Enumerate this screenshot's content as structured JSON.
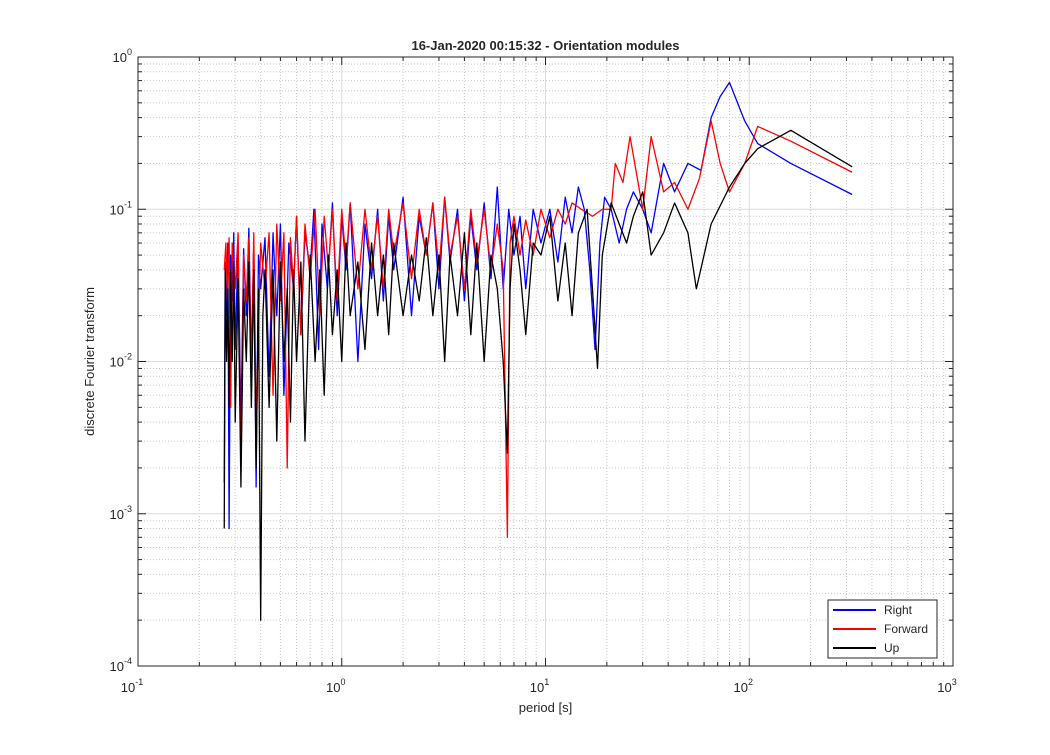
{
  "chart_data": {
    "type": "line",
    "title": "16-Jan-2020 00:15:32 - Orientation modules",
    "xlabel": "period [s]",
    "ylabel": "discrete Fourier transform",
    "xscale": "log",
    "yscale": "log",
    "xlim": [
      0.1,
      1000
    ],
    "ylim": [
      0.0001,
      1
    ],
    "x_ticks": [
      {
        "base": "10",
        "exp": "-1",
        "value": 0.1
      },
      {
        "base": "10",
        "exp": "0",
        "value": 1
      },
      {
        "base": "10",
        "exp": "1",
        "value": 10
      },
      {
        "base": "10",
        "exp": "2",
        "value": 100
      },
      {
        "base": "10",
        "exp": "3",
        "value": 1000
      }
    ],
    "y_ticks": [
      {
        "base": "10",
        "exp": "-4",
        "value": 0.0001
      },
      {
        "base": "10",
        "exp": "-3",
        "value": 0.001
      },
      {
        "base": "10",
        "exp": "-2",
        "value": 0.01
      },
      {
        "base": "10",
        "exp": "-1",
        "value": 0.1
      },
      {
        "base": "10",
        "exp": "0",
        "value": 1
      }
    ],
    "grid": true,
    "minor_grid": true,
    "legend_position": "bottom-right",
    "series": [
      {
        "name": "Right",
        "color": "#0000ff",
        "points": [
          [
            0.265,
            0.0016
          ],
          [
            0.268,
            0.045
          ],
          [
            0.272,
            0.02
          ],
          [
            0.276,
            0.06
          ],
          [
            0.28,
            0.0008
          ],
          [
            0.285,
            0.05
          ],
          [
            0.29,
            0.025
          ],
          [
            0.295,
            0.07
          ],
          [
            0.3,
            0.012
          ],
          [
            0.31,
            0.06
          ],
          [
            0.32,
            0.004
          ],
          [
            0.33,
            0.055
          ],
          [
            0.34,
            0.02
          ],
          [
            0.35,
            0.075
          ],
          [
            0.36,
            0.01
          ],
          [
            0.37,
            0.06
          ],
          [
            0.38,
            0.0015
          ],
          [
            0.39,
            0.05
          ],
          [
            0.4,
            0.03
          ],
          [
            0.42,
            0.065
          ],
          [
            0.44,
            0.008
          ],
          [
            0.46,
            0.07
          ],
          [
            0.48,
            0.02
          ],
          [
            0.5,
            0.08
          ],
          [
            0.52,
            0.006
          ],
          [
            0.55,
            0.06
          ],
          [
            0.58,
            0.03
          ],
          [
            0.6,
            0.09
          ],
          [
            0.63,
            0.015
          ],
          [
            0.66,
            0.07
          ],
          [
            0.7,
            0.04
          ],
          [
            0.73,
            0.1
          ],
          [
            0.77,
            0.012
          ],
          [
            0.8,
            0.08
          ],
          [
            0.85,
            0.03
          ],
          [
            0.9,
            0.11
          ],
          [
            0.95,
            0.02
          ],
          [
            1.0,
            0.09
          ],
          [
            1.05,
            0.04
          ],
          [
            1.1,
            0.11
          ],
          [
            1.2,
            0.01
          ],
          [
            1.3,
            0.08
          ],
          [
            1.4,
            0.035
          ],
          [
            1.5,
            0.1
          ],
          [
            1.6,
            0.025
          ],
          [
            1.7,
            0.09
          ],
          [
            1.8,
            0.04
          ],
          [
            2.0,
            0.12
          ],
          [
            2.2,
            0.02
          ],
          [
            2.4,
            0.09
          ],
          [
            2.6,
            0.05
          ],
          [
            2.8,
            0.11
          ],
          [
            3.0,
            0.03
          ],
          [
            3.2,
            0.12
          ],
          [
            3.4,
            0.045
          ],
          [
            3.7,
            0.1
          ],
          [
            4.0,
            0.025
          ],
          [
            4.3,
            0.09
          ],
          [
            4.6,
            0.04
          ],
          [
            5.0,
            0.11
          ],
          [
            5.4,
            0.035
          ],
          [
            5.8,
            0.14
          ],
          [
            6.2,
            0.03
          ],
          [
            6.6,
            0.1
          ],
          [
            7.0,
            0.05
          ],
          [
            7.5,
            0.09
          ],
          [
            8.0,
            0.03
          ],
          [
            8.7,
            0.1
          ],
          [
            9.5,
            0.06
          ],
          [
            10.5,
            0.1
          ],
          [
            11.5,
            0.045
          ],
          [
            12.5,
            0.12
          ],
          [
            13.5,
            0.07
          ],
          [
            14.5,
            0.14
          ],
          [
            15.5,
            0.1
          ],
          [
            16.5,
            0.04
          ],
          [
            17.5,
            0.012
          ],
          [
            18.5,
            0.06
          ],
          [
            19.5,
            0.12
          ],
          [
            21,
            0.1
          ],
          [
            23,
            0.06
          ],
          [
            25,
            0.1
          ],
          [
            27,
            0.13
          ],
          [
            30,
            0.1
          ],
          [
            33,
            0.07
          ],
          [
            38,
            0.2
          ],
          [
            43,
            0.13
          ],
          [
            50,
            0.2
          ],
          [
            58,
            0.18
          ],
          [
            65,
            0.4
          ],
          [
            72,
            0.55
          ],
          [
            80,
            0.68
          ],
          [
            95,
            0.38
          ],
          [
            110,
            0.27
          ],
          [
            160,
            0.2
          ],
          [
            320,
            0.125
          ]
        ]
      },
      {
        "name": "Forward",
        "color": "#ff0000",
        "points": [
          [
            0.265,
            0.04
          ],
          [
            0.27,
            0.06
          ],
          [
            0.275,
            0.025
          ],
          [
            0.28,
            0.065
          ],
          [
            0.285,
            0.005
          ],
          [
            0.29,
            0.06
          ],
          [
            0.3,
            0.03
          ],
          [
            0.31,
            0.07
          ],
          [
            0.32,
            0.002
          ],
          [
            0.33,
            0.05
          ],
          [
            0.34,
            0.025
          ],
          [
            0.35,
            0.065
          ],
          [
            0.36,
            0.008
          ],
          [
            0.37,
            0.07
          ],
          [
            0.38,
            0.004
          ],
          [
            0.4,
            0.06
          ],
          [
            0.42,
            0.03
          ],
          [
            0.44,
            0.07
          ],
          [
            0.46,
            0.006
          ],
          [
            0.48,
            0.08
          ],
          [
            0.5,
            0.025
          ],
          [
            0.52,
            0.07
          ],
          [
            0.54,
            0.002
          ],
          [
            0.56,
            0.065
          ],
          [
            0.58,
            0.03
          ],
          [
            0.6,
            0.09
          ],
          [
            0.63,
            0.015
          ],
          [
            0.66,
            0.08
          ],
          [
            0.7,
            0.035
          ],
          [
            0.74,
            0.1
          ],
          [
            0.78,
            0.02
          ],
          [
            0.82,
            0.09
          ],
          [
            0.86,
            0.04
          ],
          [
            0.9,
            0.1
          ],
          [
            0.95,
            0.025
          ],
          [
            1.0,
            0.1
          ],
          [
            1.05,
            0.045
          ],
          [
            1.1,
            0.11
          ],
          [
            1.2,
            0.03
          ],
          [
            1.3,
            0.1
          ],
          [
            1.4,
            0.04
          ],
          [
            1.5,
            0.09
          ],
          [
            1.6,
            0.03
          ],
          [
            1.7,
            0.1
          ],
          [
            1.8,
            0.05
          ],
          [
            2.0,
            0.11
          ],
          [
            2.2,
            0.035
          ],
          [
            2.4,
            0.1
          ],
          [
            2.6,
            0.05
          ],
          [
            2.8,
            0.11
          ],
          [
            3.0,
            0.04
          ],
          [
            3.2,
            0.12
          ],
          [
            3.4,
            0.05
          ],
          [
            3.7,
            0.09
          ],
          [
            4.0,
            0.03
          ],
          [
            4.3,
            0.1
          ],
          [
            4.6,
            0.045
          ],
          [
            5.0,
            0.1
          ],
          [
            5.4,
            0.04
          ],
          [
            5.8,
            0.08
          ],
          [
            6.2,
            0.04
          ],
          [
            6.5,
            0.0007
          ],
          [
            6.7,
            0.06
          ],
          [
            7.0,
            0.09
          ],
          [
            7.5,
            0.05
          ],
          [
            8.0,
            0.085
          ],
          [
            8.7,
            0.05
          ],
          [
            9.5,
            0.1
          ],
          [
            10.5,
            0.065
          ],
          [
            11.5,
            0.1
          ],
          [
            12.5,
            0.08
          ],
          [
            13.5,
            0.11
          ],
          [
            15,
            0.1
          ],
          [
            17,
            0.09
          ],
          [
            19,
            0.1
          ],
          [
            21,
            0.1
          ],
          [
            22,
            0.2
          ],
          [
            24,
            0.15
          ],
          [
            26,
            0.3
          ],
          [
            28,
            0.17
          ],
          [
            30,
            0.1
          ],
          [
            33,
            0.3
          ],
          [
            38,
            0.13
          ],
          [
            43,
            0.15
          ],
          [
            50,
            0.1
          ],
          [
            57,
            0.16
          ],
          [
            65,
            0.38
          ],
          [
            72,
            0.2
          ],
          [
            80,
            0.13
          ],
          [
            95,
            0.2
          ],
          [
            110,
            0.35
          ],
          [
            160,
            0.28
          ],
          [
            320,
            0.175
          ]
        ]
      },
      {
        "name": "Up",
        "color": "#000000",
        "points": [
          [
            0.265,
            0.0008
          ],
          [
            0.268,
            0.04
          ],
          [
            0.272,
            0.01
          ],
          [
            0.276,
            0.03
          ],
          [
            0.28,
            0.005
          ],
          [
            0.285,
            0.04
          ],
          [
            0.29,
            0.01
          ],
          [
            0.295,
            0.045
          ],
          [
            0.3,
            0.004
          ],
          [
            0.31,
            0.035
          ],
          [
            0.32,
            0.0015
          ],
          [
            0.33,
            0.03
          ],
          [
            0.34,
            0.01
          ],
          [
            0.35,
            0.045
          ],
          [
            0.36,
            0.005
          ],
          [
            0.37,
            0.04
          ],
          [
            0.38,
            0.002
          ],
          [
            0.39,
            0.03
          ],
          [
            0.4,
            0.0002
          ],
          [
            0.41,
            0.02
          ],
          [
            0.42,
            0.04
          ],
          [
            0.44,
            0.005
          ],
          [
            0.46,
            0.04
          ],
          [
            0.48,
            0.003
          ],
          [
            0.5,
            0.045
          ],
          [
            0.52,
            0.01
          ],
          [
            0.54,
            0.03
          ],
          [
            0.56,
            0.004
          ],
          [
            0.58,
            0.04
          ],
          [
            0.6,
            0.01
          ],
          [
            0.63,
            0.045
          ],
          [
            0.66,
            0.003
          ],
          [
            0.7,
            0.05
          ],
          [
            0.74,
            0.01
          ],
          [
            0.78,
            0.04
          ],
          [
            0.82,
            0.006
          ],
          [
            0.86,
            0.05
          ],
          [
            0.9,
            0.015
          ],
          [
            0.95,
            0.04
          ],
          [
            1.0,
            0.01
          ],
          [
            1.05,
            0.06
          ],
          [
            1.1,
            0.02
          ],
          [
            1.2,
            0.045
          ],
          [
            1.3,
            0.012
          ],
          [
            1.4,
            0.06
          ],
          [
            1.5,
            0.02
          ],
          [
            1.6,
            0.05
          ],
          [
            1.7,
            0.015
          ],
          [
            1.8,
            0.06
          ],
          [
            2.0,
            0.02
          ],
          [
            2.2,
            0.05
          ],
          [
            2.4,
            0.025
          ],
          [
            2.6,
            0.065
          ],
          [
            2.8,
            0.02
          ],
          [
            3.0,
            0.05
          ],
          [
            3.2,
            0.01
          ],
          [
            3.4,
            0.05
          ],
          [
            3.7,
            0.02
          ],
          [
            4.0,
            0.07
          ],
          [
            4.3,
            0.015
          ],
          [
            4.6,
            0.06
          ],
          [
            5.0,
            0.01
          ],
          [
            5.4,
            0.05
          ],
          [
            5.8,
            0.03
          ],
          [
            6.2,
            0.01
          ],
          [
            6.5,
            0.0025
          ],
          [
            6.7,
            0.03
          ],
          [
            7.0,
            0.08
          ],
          [
            7.5,
            0.04
          ],
          [
            8.0,
            0.015
          ],
          [
            8.7,
            0.06
          ],
          [
            9.5,
            0.05
          ],
          [
            10.5,
            0.09
          ],
          [
            11.5,
            0.025
          ],
          [
            12.5,
            0.06
          ],
          [
            13.5,
            0.02
          ],
          [
            14.5,
            0.07
          ],
          [
            16,
            0.1
          ],
          [
            17,
            0.03
          ],
          [
            18,
            0.009
          ],
          [
            19,
            0.05
          ],
          [
            21,
            0.11
          ],
          [
            23,
            0.08
          ],
          [
            25,
            0.06
          ],
          [
            27,
            0.09
          ],
          [
            30,
            0.13
          ],
          [
            33,
            0.05
          ],
          [
            38,
            0.07
          ],
          [
            43,
            0.11
          ],
          [
            50,
            0.07
          ],
          [
            55,
            0.03
          ],
          [
            65,
            0.08
          ],
          [
            80,
            0.14
          ],
          [
            95,
            0.2
          ],
          [
            110,
            0.25
          ],
          [
            160,
            0.33
          ],
          [
            320,
            0.19
          ]
        ]
      }
    ]
  }
}
